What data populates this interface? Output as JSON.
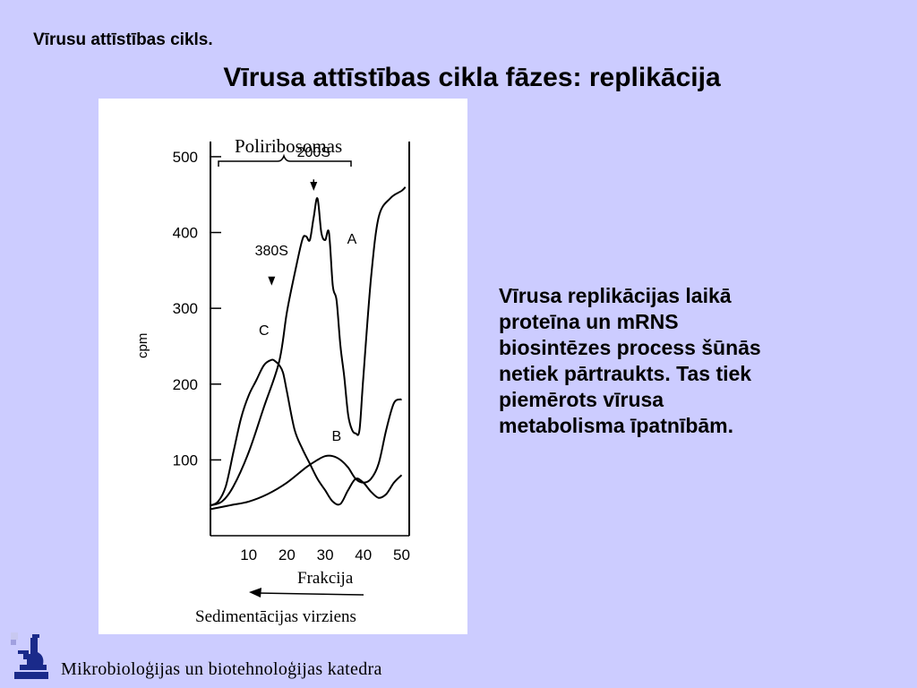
{
  "slide": {
    "breadcrumb": "Vīrusu attīstības cikls.",
    "title": "Vīrusa attīstības cikla fāzes: replikācija",
    "body_lines": [
      "Vīrusa replikācijas laikā",
      "proteīna un mRNS",
      "biosintēzes process šūnās",
      "netiek pārtraukts. Tas tiek",
      "piemērots vīrusa",
      "metabolisma īpatnībām."
    ],
    "footer": "Mikrobioloģijas un biotehnoloģijas katedra",
    "background_color": "#ccccff"
  },
  "figure": {
    "bracket_label": "Poliribosomas",
    "ylabel": "cpm",
    "xlabel": "Frakcija",
    "direction_label": "Sedimentācijas virziens",
    "annotations": [
      "200S",
      "380S"
    ],
    "curve_labels": [
      "A",
      "B",
      "C"
    ],
    "y_ticks": [
      "500",
      "400",
      "300",
      "200",
      "100"
    ],
    "x_ticks": [
      "10",
      "20",
      "30",
      "40",
      "50"
    ]
  },
  "chart_data": {
    "type": "line",
    "xlabel": "Frakcija",
    "ylabel": "cpm",
    "xlim": [
      0,
      52
    ],
    "ylim": [
      0,
      520
    ],
    "y_ticks": [
      100,
      200,
      300,
      400,
      500
    ],
    "x_ticks": [
      10,
      20,
      30,
      40,
      50
    ],
    "series": [
      {
        "name": "A",
        "x": [
          0,
          3,
          6,
          10,
          14,
          18,
          20,
          22,
          24,
          25,
          26,
          27,
          28,
          29,
          30,
          31,
          32,
          33,
          34,
          35,
          36,
          37,
          38,
          39,
          40,
          42,
          44,
          47,
          50,
          51
        ],
        "y": [
          40,
          45,
          65,
          110,
          170,
          230,
          295,
          345,
          390,
          395,
          390,
          420,
          445,
          400,
          390,
          400,
          330,
          310,
          250,
          210,
          160,
          140,
          135,
          140,
          210,
          340,
          420,
          445,
          455,
          460
        ]
      },
      {
        "name": "B",
        "x": [
          0,
          5,
          10,
          15,
          20,
          25,
          28,
          30,
          32,
          34,
          36,
          38,
          40,
          42,
          44,
          46,
          48,
          50
        ],
        "y": [
          35,
          40,
          45,
          55,
          70,
          90,
          100,
          105,
          105,
          100,
          90,
          75,
          70,
          75,
          95,
          140,
          175,
          180
        ]
      },
      {
        "name": "C",
        "x": [
          0,
          2,
          4,
          6,
          8,
          10,
          12,
          14,
          16,
          17,
          18,
          19,
          20,
          22,
          24,
          26,
          28,
          30,
          32,
          34,
          36,
          38,
          40,
          42,
          44,
          46,
          48,
          50
        ],
        "y": [
          40,
          45,
          65,
          110,
          155,
          185,
          205,
          225,
          232,
          230,
          225,
          215,
          190,
          140,
          115,
          95,
          75,
          60,
          45,
          42,
          60,
          75,
          70,
          58,
          50,
          55,
          70,
          80
        ]
      }
    ],
    "annotations": [
      {
        "text": "200S",
        "x": 27
      },
      {
        "text": "380S",
        "x": 16
      }
    ]
  }
}
